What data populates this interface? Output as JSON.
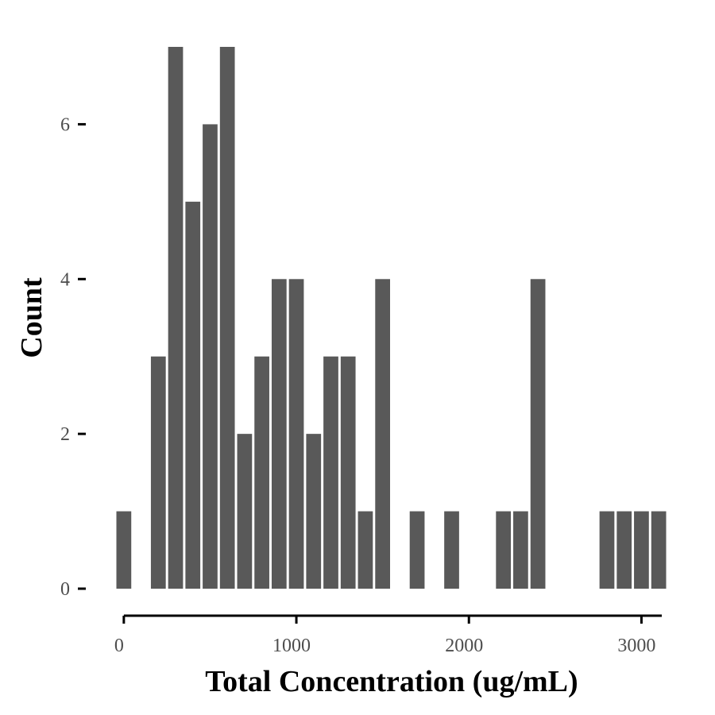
{
  "chart_data": {
    "type": "bar",
    "xlabel": "Total Concentration (ug/mL)",
    "ylabel": "Count",
    "bin_width": 100,
    "x_bin_centers": [
      0,
      100,
      200,
      300,
      400,
      500,
      600,
      700,
      800,
      900,
      1000,
      1100,
      1200,
      1300,
      1400,
      1500,
      1600,
      1700,
      1800,
      1900,
      2000,
      2100,
      2200,
      2300,
      2400,
      2500,
      2600,
      2700,
      2800,
      2900,
      3000,
      3100
    ],
    "values": [
      1,
      0,
      3,
      7,
      5,
      6,
      7,
      2,
      3,
      4,
      4,
      2,
      3,
      3,
      1,
      4,
      0,
      1,
      0,
      1,
      0,
      0,
      1,
      1,
      4,
      0,
      0,
      0,
      1,
      1,
      1,
      1
    ],
    "xlim": [
      -50,
      3150
    ],
    "ylim": [
      0,
      7
    ],
    "x_ticks": [
      0,
      1000,
      2000,
      3000
    ],
    "x_tick_labels": [
      "0",
      "1000",
      "2000",
      "3000"
    ],
    "y_ticks": [
      0,
      2,
      4,
      6
    ],
    "y_tick_labels": [
      "0",
      "2",
      "4",
      "6"
    ],
    "bar_color": "#595959",
    "grid": false,
    "legend": "none"
  }
}
